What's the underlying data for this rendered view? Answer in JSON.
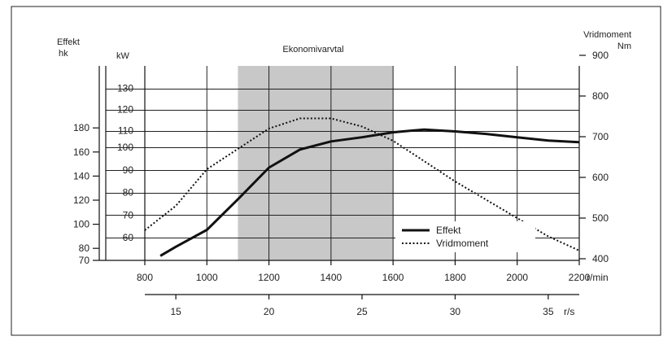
{
  "chart_data": {
    "type": "line",
    "title": "Ekonomivarvtal",
    "economy_band": [
      1100,
      1600
    ],
    "axes": {
      "left_hp": {
        "label": "Effekt",
        "unit": "hk",
        "ticks": [
          70,
          80,
          100,
          120,
          140,
          160,
          180
        ]
      },
      "left_kw": {
        "unit": "kW",
        "ticks": [
          60,
          70,
          80,
          90,
          100,
          110,
          120,
          130
        ]
      },
      "right": {
        "label": "Vridmoment",
        "unit": "Nm",
        "ticks": [
          400,
          500,
          600,
          700,
          800,
          900
        ]
      },
      "bottom_rpm": {
        "unit": "r/min",
        "ticks": [
          800,
          1000,
          1200,
          1400,
          1600,
          1800,
          2000,
          2200
        ],
        "range": [
          800,
          2200
        ]
      },
      "bottom_rps": {
        "unit": "r/s",
        "ticks": [
          15,
          20,
          25,
          30,
          35
        ]
      }
    },
    "legend": {
      "placement": "lower-right"
    },
    "series": [
      {
        "name": "Effekt",
        "style": "solid",
        "unit": "kW",
        "x": [
          850,
          900,
          1000,
          1100,
          1200,
          1300,
          1400,
          1500,
          1600,
          1700,
          1800,
          1900,
          2000,
          2100,
          2200
        ],
        "values": [
          52,
          56,
          63.5,
          77,
          91,
          99,
          103.5,
          106,
          109,
          110.5,
          109.5,
          108,
          106,
          104,
          103
        ]
      },
      {
        "name": "Vridmoment",
        "style": "dotted",
        "unit": "Nm",
        "x": [
          800,
          900,
          1000,
          1100,
          1200,
          1300,
          1400,
          1500,
          1600,
          1700,
          1800,
          1900,
          2000,
          2100,
          2200
        ],
        "values": [
          470,
          530,
          620,
          670,
          720,
          745,
          745,
          725,
          690,
          640,
          590,
          545,
          500,
          455,
          420
        ]
      }
    ]
  }
}
